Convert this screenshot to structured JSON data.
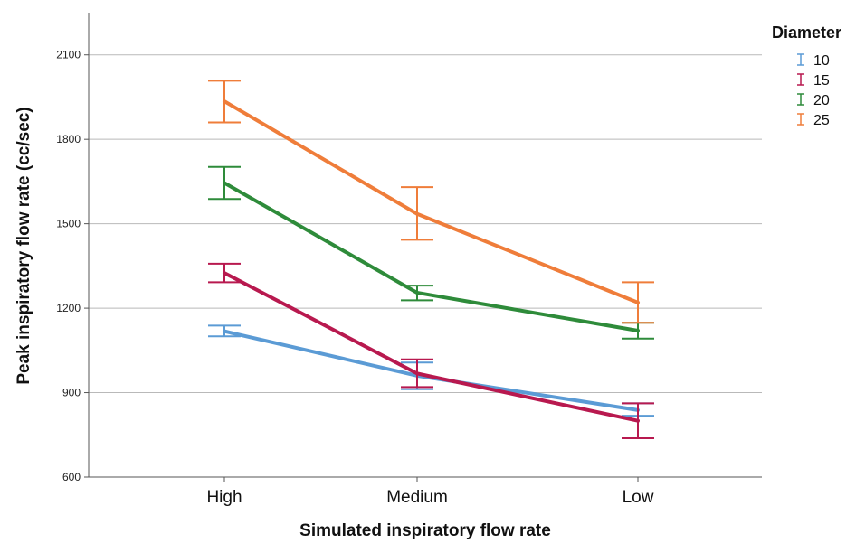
{
  "chart_data": {
    "type": "line",
    "xlabel": "Simulated inspiratory flow rate",
    "ylabel": "Peak inspiratory flow rate (cc/sec)",
    "categories": [
      "High",
      "Medium",
      "Low"
    ],
    "ylim": [
      600,
      2250
    ],
    "yticks": [
      600,
      900,
      1200,
      1500,
      1800,
      2100
    ],
    "grid": true,
    "legend": {
      "title": "Diameter",
      "position": "right-top"
    },
    "error_bars": true,
    "series": [
      {
        "name": "10",
        "color": "#5b9bd5",
        "values": [
          1118,
          960,
          838
        ],
        "lower": [
          1100,
          912,
          818
        ],
        "upper": [
          1138,
          1007,
          862
        ]
      },
      {
        "name": "15",
        "color": "#b8194f",
        "values": [
          1325,
          968,
          800
        ],
        "lower": [
          1292,
          920,
          738
        ],
        "upper": [
          1358,
          1018,
          862
        ]
      },
      {
        "name": "20",
        "color": "#2e8b3a",
        "values": [
          1645,
          1255,
          1120
        ],
        "lower": [
          1588,
          1228,
          1092
        ],
        "upper": [
          1702,
          1280,
          1148
        ]
      },
      {
        "name": "25",
        "color": "#ef7d3a",
        "values": [
          1935,
          1535,
          1220
        ],
        "lower": [
          1860,
          1443,
          1148
        ],
        "upper": [
          2008,
          1630,
          1292
        ]
      }
    ]
  }
}
